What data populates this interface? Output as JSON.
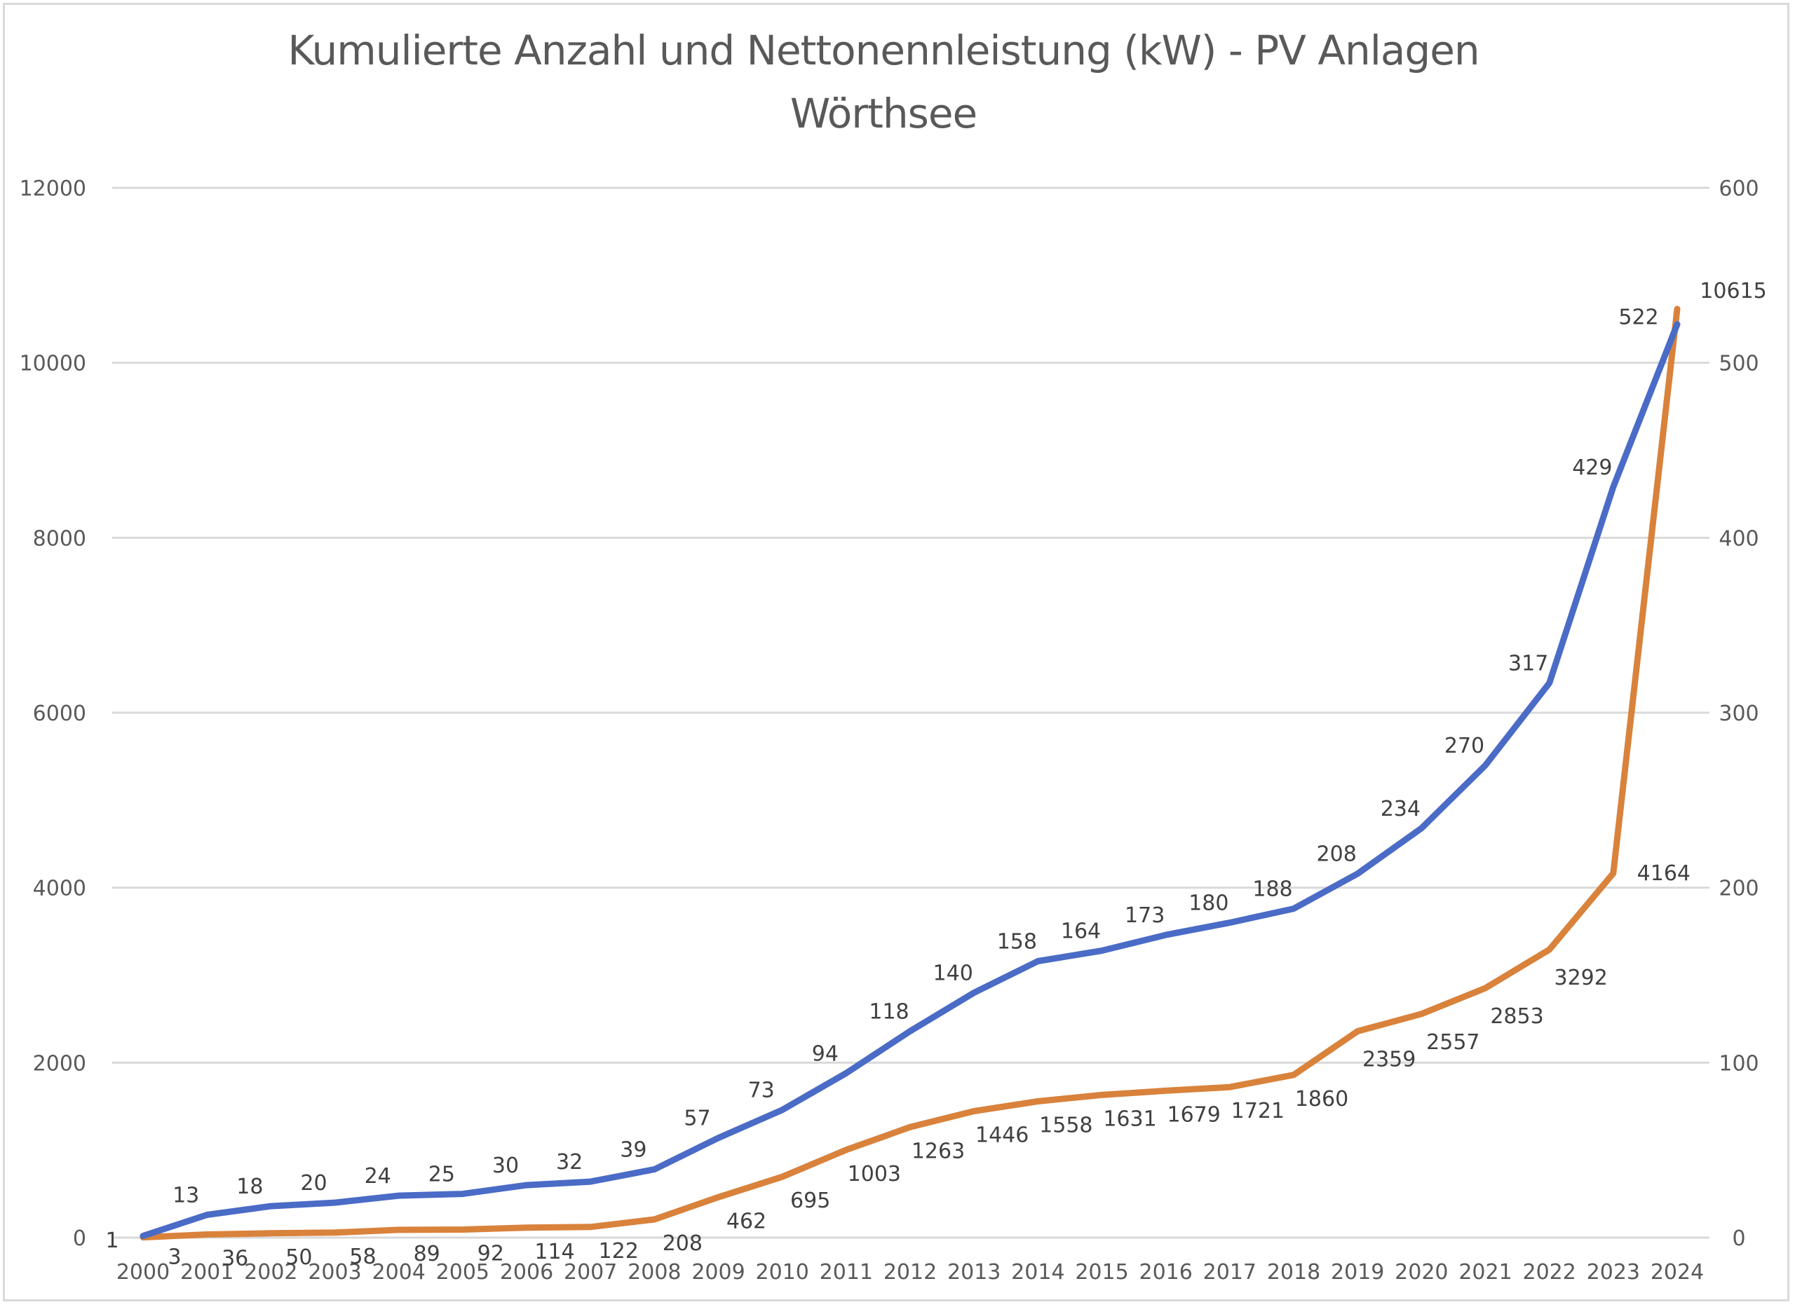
{
  "chart_data": {
    "type": "line",
    "title": "Kumulierte Anzahl und Nettonennleistung (kW) - PV Anlagen",
    "subtitle": "Wörthsee",
    "xlabel": "",
    "ylabel": "",
    "categories": [
      "2000",
      "2001",
      "2002",
      "2003",
      "2004",
      "2005",
      "2006",
      "2007",
      "2008",
      "2009",
      "2010",
      "2011",
      "2012",
      "2013",
      "2014",
      "2015",
      "2016",
      "2017",
      "2018",
      "2019",
      "2020",
      "2021",
      "2022",
      "2023",
      "2024"
    ],
    "left_axis": {
      "ylim": [
        0,
        12000
      ],
      "ticks": [
        "0",
        "2000",
        "4000",
        "6000",
        "8000",
        "10000",
        "12000"
      ]
    },
    "right_axis": {
      "ylim": [
        0,
        600
      ],
      "ticks": [
        "0",
        "100",
        "200",
        "300",
        "400",
        "500",
        "600"
      ]
    },
    "grid": true,
    "legend": "none",
    "series": [
      {
        "name": "Kumulierte Anzahl",
        "axis": "right",
        "color": "#4a6bc6",
        "values": [
          1,
          13,
          18,
          20,
          24,
          25,
          30,
          32,
          39,
          57,
          73,
          94,
          118,
          140,
          158,
          164,
          173,
          180,
          188,
          208,
          234,
          270,
          317,
          429,
          522
        ]
      },
      {
        "name": "Kumulierte Nettonennleistung (kW)",
        "axis": "left",
        "color": "#d9823b",
        "values": [
          3,
          36,
          50,
          58,
          89,
          92,
          114,
          122,
          208,
          462,
          695,
          1003,
          1263,
          1446,
          1558,
          1631,
          1679,
          1721,
          1860,
          2359,
          2557,
          2853,
          3292,
          4164,
          10615
        ]
      }
    ]
  }
}
